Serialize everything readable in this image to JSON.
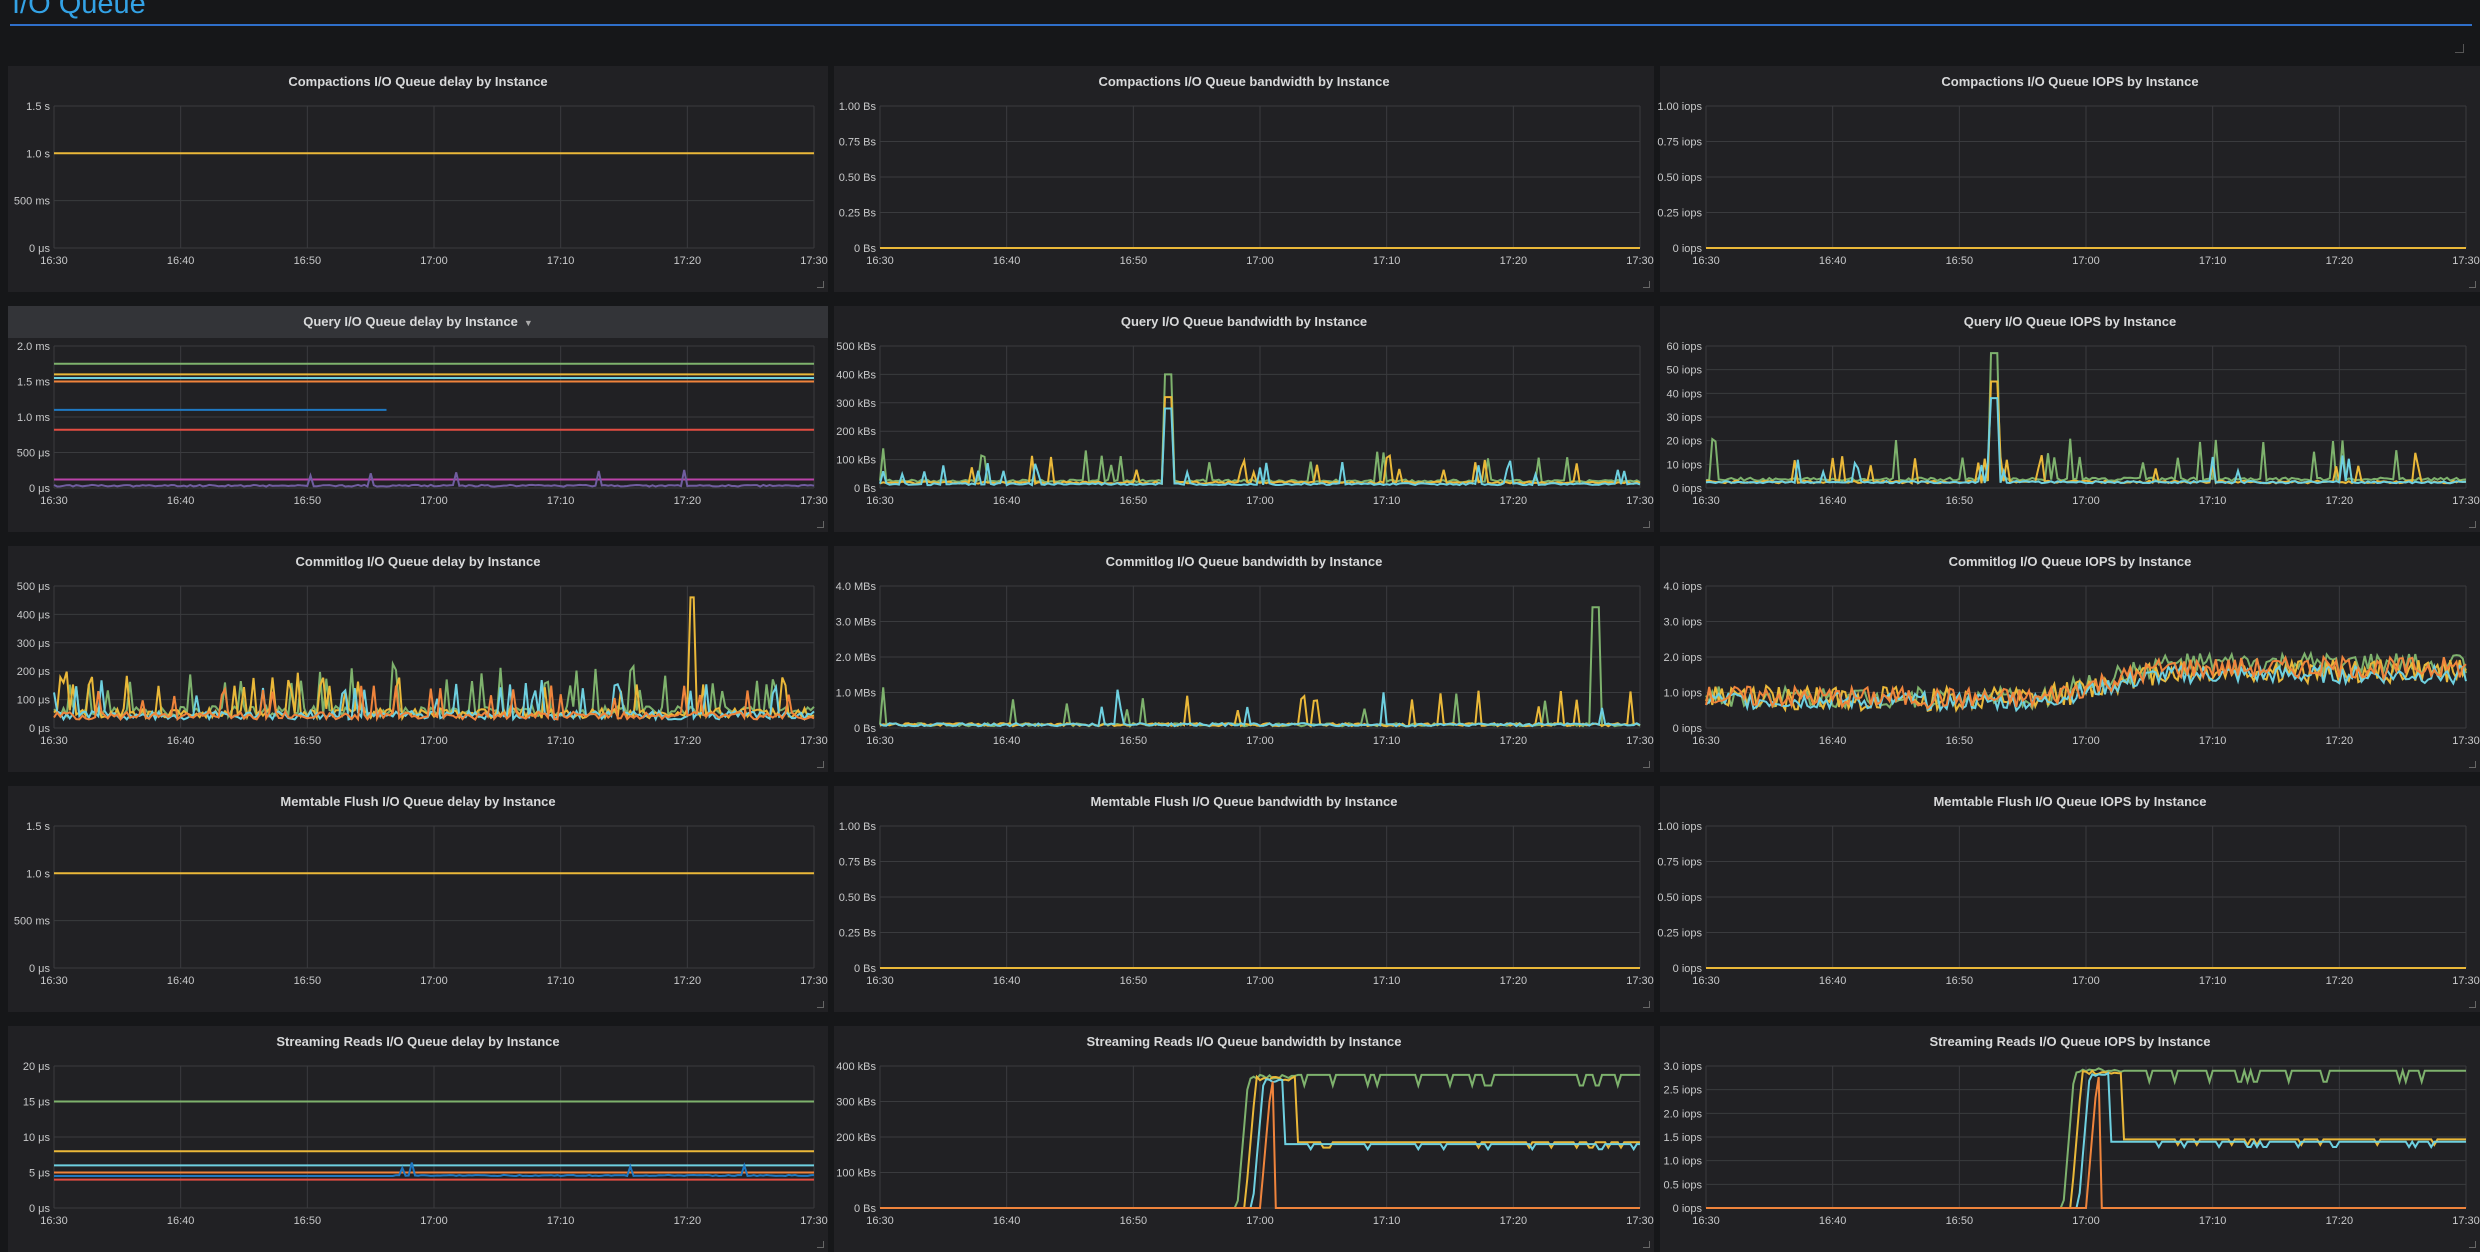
{
  "row": {
    "title": "I/O Queue"
  },
  "colors": [
    "#7eb26d",
    "#eab839",
    "#6ed0e0",
    "#ef843c",
    "#e24d42",
    "#1f78c1",
    "#ba43a9",
    "#705da0",
    "#508642",
    "#cca300",
    "#447ebc",
    "#c15c17"
  ],
  "time_ticks": [
    "16:30",
    "16:40",
    "16:50",
    "17:00",
    "17:10",
    "17:20",
    "17:30"
  ],
  "panels": [
    {
      "title": "Compactions I/O Queue delay by Instance",
      "y_ticks": [
        "0 μs",
        "500 ms",
        "1.0 s",
        "1.5 s"
      ],
      "ymax": 1.5,
      "series": [
        {
          "kind": "flat",
          "v": 1.0
        }
      ]
    },
    {
      "title": "Compactions I/O Queue bandwidth by Instance",
      "y_ticks": [
        "0 Bs",
        "0.25 Bs",
        "0.50 Bs",
        "0.75 Bs",
        "1.00 Bs"
      ],
      "ymax": 1,
      "series": [
        {
          "kind": "flat",
          "v": 0
        }
      ]
    },
    {
      "title": "Compactions I/O Queue IOPS by Instance",
      "y_ticks": [
        "0 iops",
        "0.25 iops",
        "0.50 iops",
        "0.75 iops",
        "1.00 iops"
      ],
      "ymax": 1,
      "series": [
        {
          "kind": "flat",
          "v": 0
        }
      ]
    },
    {
      "title": "Query I/O Queue delay by Instance",
      "dropdown": true,
      "y_ticks": [
        "0 μs",
        "500 μs",
        "1.0 ms",
        "1.5 ms",
        "2.0 ms"
      ],
      "ymax": 2,
      "series": [
        {
          "kind": "flat",
          "v": 1.75
        },
        {
          "kind": "flat",
          "v": 1.6
        },
        {
          "kind": "flat",
          "v": 1.55
        },
        {
          "kind": "flat",
          "v": 1.5
        },
        {
          "kind": "flat",
          "v": 0.82
        },
        {
          "kind": "segment",
          "v": 1.1,
          "from": 0,
          "to": 0.44
        },
        {
          "kind": "flat",
          "v": 0.12
        },
        {
          "kind": "spiky",
          "base": 0.02,
          "amp": 0.3,
          "rate": 0.015
        }
      ]
    },
    {
      "title": "Query I/O Queue bandwidth by Instance",
      "y_ticks": [
        "0 Bs",
        "100 kBs",
        "200 kBs",
        "300 kBs",
        "400 kBs",
        "500 kBs"
      ],
      "ymax": 500,
      "series": [
        {
          "kind": "spiky",
          "base": 20,
          "amp": 120,
          "rate": 0.08,
          "peak": [
            0.38,
            400
          ]
        },
        {
          "kind": "spiky",
          "base": 15,
          "amp": 100,
          "rate": 0.07,
          "peak": [
            0.38,
            320
          ]
        },
        {
          "kind": "spiky",
          "base": 10,
          "amp": 90,
          "rate": 0.06,
          "peak": [
            0.38,
            280
          ]
        }
      ]
    },
    {
      "title": "Query I/O Queue IOPS by Instance",
      "y_ticks": [
        "0 iops",
        "10 iops",
        "20 iops",
        "30 iops",
        "40 iops",
        "50 iops",
        "60 iops"
      ],
      "ymax": 60,
      "series": [
        {
          "kind": "spiky",
          "base": 3,
          "amp": 18,
          "rate": 0.08,
          "peak": [
            0.38,
            57
          ]
        },
        {
          "kind": "spiky",
          "base": 2,
          "amp": 14,
          "rate": 0.07,
          "peak": [
            0.38,
            45
          ]
        },
        {
          "kind": "spiky",
          "base": 2,
          "amp": 12,
          "rate": 0.06,
          "peak": [
            0.38,
            38
          ]
        }
      ]
    },
    {
      "title": "Commitlog I/O Queue delay by Instance",
      "y_ticks": [
        "0 μs",
        "100 μs",
        "200 μs",
        "300 μs",
        "400 μs",
        "500 μs"
      ],
      "ymax": 500,
      "series": [
        {
          "kind": "noisy",
          "base": 40,
          "amp": 150,
          "rate": 0.12
        },
        {
          "kind": "noisy",
          "base": 35,
          "amp": 140,
          "rate": 0.12,
          "peak": [
            0.84,
            460
          ]
        },
        {
          "kind": "noisy",
          "base": 30,
          "amp": 120,
          "rate": 0.1
        },
        {
          "kind": "noisy",
          "base": 30,
          "amp": 110,
          "rate": 0.1
        }
      ]
    },
    {
      "title": "Commitlog I/O Queue bandwidth by Instance",
      "y_ticks": [
        "0 Bs",
        "1.0 MBs",
        "2.0 MBs",
        "3.0 MBs",
        "4.0 MBs"
      ],
      "ymax": 4,
      "series": [
        {
          "kind": "spiky",
          "base": 0.05,
          "amp": 1.1,
          "rate": 0.05,
          "peak": [
            0.94,
            3.4
          ]
        },
        {
          "kind": "spiky",
          "base": 0.05,
          "amp": 1.1,
          "rate": 0.05
        },
        {
          "kind": "spiky",
          "base": 0.05,
          "amp": 1.1,
          "rate": 0.04
        }
      ]
    },
    {
      "title": "Commitlog I/O Queue IOPS by Instance",
      "y_ticks": [
        "0 iops",
        "1.0 iops",
        "2.0 iops",
        "3.0 iops",
        "4.0 iops"
      ],
      "ymax": 4,
      "series": [
        {
          "kind": "wave",
          "base": 0.9,
          "rise": 1.8,
          "amp": 0.6
        },
        {
          "kind": "wave",
          "base": 0.85,
          "rise": 1.6,
          "amp": 0.7
        },
        {
          "kind": "wave",
          "base": 0.8,
          "rise": 1.5,
          "amp": 0.5
        },
        {
          "kind": "wave",
          "base": 0.9,
          "rise": 1.7,
          "amp": 0.6
        }
      ]
    },
    {
      "title": "Memtable Flush I/O Queue delay by Instance",
      "y_ticks": [
        "0 μs",
        "500 ms",
        "1.0 s",
        "1.5 s"
      ],
      "ymax": 1.5,
      "series": [
        {
          "kind": "flat",
          "v": 1.0
        }
      ]
    },
    {
      "title": "Memtable Flush I/O Queue bandwidth by Instance",
      "y_ticks": [
        "0 Bs",
        "0.25 Bs",
        "0.50 Bs",
        "0.75 Bs",
        "1.00 Bs"
      ],
      "ymax": 1,
      "series": [
        {
          "kind": "flat",
          "v": 0
        }
      ]
    },
    {
      "title": "Memtable Flush I/O Queue IOPS by Instance",
      "y_ticks": [
        "0 iops",
        "0.25 iops",
        "0.50 iops",
        "0.75 iops",
        "1.00 iops"
      ],
      "ymax": 1,
      "series": [
        {
          "kind": "flat",
          "v": 0
        }
      ]
    },
    {
      "title": "Streaming Reads I/O Queue delay by Instance",
      "y_ticks": [
        "0 μs",
        "5 μs",
        "10 μs",
        "15 μs",
        "20 μs"
      ],
      "ymax": 20,
      "series": [
        {
          "kind": "flat",
          "v": 15
        },
        {
          "kind": "flat",
          "v": 8
        },
        {
          "kind": "flat",
          "v": 6
        },
        {
          "kind": "flat",
          "v": 5
        },
        {
          "kind": "flat",
          "v": 4
        },
        {
          "kind": "spiky",
          "base": 4.5,
          "amp": 2,
          "rate": 0.03,
          "from": 0.45
        }
      ]
    },
    {
      "title": "Streaming Reads I/O Queue bandwidth by Instance",
      "y_ticks": [
        "0 Bs",
        "100 kBs",
        "200 kBs",
        "300 kBs",
        "400 kBs"
      ],
      "ymax": 400,
      "series": [
        {
          "kind": "step",
          "start": 0.47,
          "top": 375,
          "after": 375,
          "end": 0.55
        },
        {
          "kind": "step",
          "start": 0.48,
          "top": 370,
          "after": 185,
          "end": 0.55
        },
        {
          "kind": "step",
          "start": 0.49,
          "top": 365,
          "after": 180,
          "end": 0.53
        },
        {
          "kind": "step",
          "start": 0.5,
          "top": 360,
          "after": 0,
          "end": 0.52
        }
      ]
    },
    {
      "title": "Streaming Reads I/O Queue IOPS by Instance",
      "y_ticks": [
        "0 iops",
        "0.5 iops",
        "1.0 iops",
        "1.5 iops",
        "2.0 iops",
        "2.5 iops",
        "3.0 iops"
      ],
      "ymax": 3,
      "series": [
        {
          "kind": "step",
          "start": 0.47,
          "top": 2.95,
          "after": 2.9,
          "end": 0.55
        },
        {
          "kind": "step",
          "start": 0.48,
          "top": 2.9,
          "after": 1.45,
          "end": 0.55
        },
        {
          "kind": "step",
          "start": 0.49,
          "top": 2.85,
          "after": 1.4,
          "end": 0.53
        },
        {
          "kind": "step",
          "start": 0.5,
          "top": 2.8,
          "after": 0,
          "end": 0.52
        }
      ]
    }
  ]
}
